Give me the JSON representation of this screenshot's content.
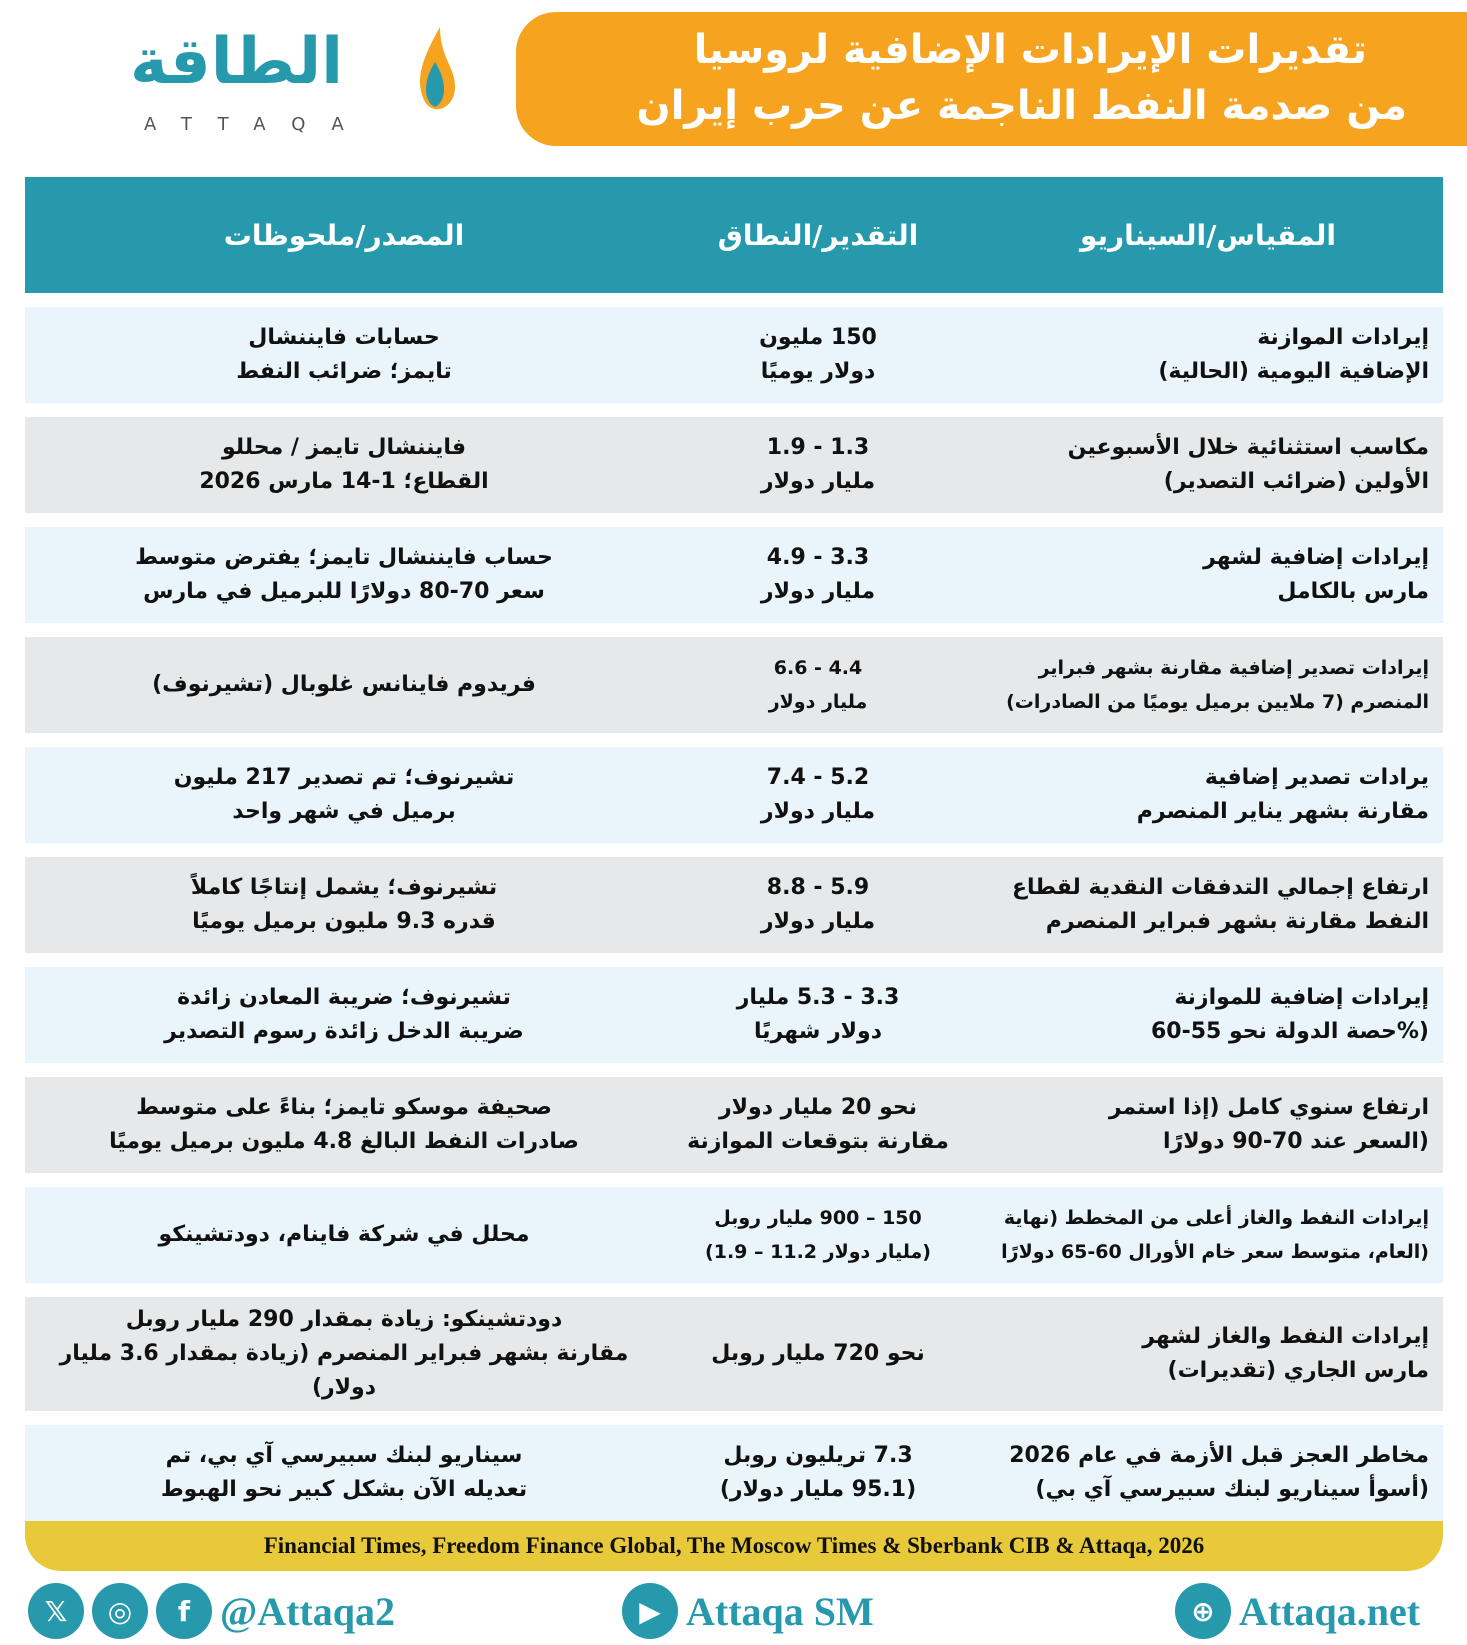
{
  "title": {
    "line1": "تقديرات الإيرادات الإضافية لروسيا",
    "line2": "من صدمة النفط الناجمة عن حرب إيران"
  },
  "logo": {
    "arabic": "الطاقة",
    "latin": "ATTAQA"
  },
  "colors": {
    "title_bg": "#f6a31f",
    "header_bg": "#2699ad",
    "row_odd": "#e9f4fb",
    "row_even": "#e6e8e9",
    "source_bg": "#e8c93a"
  },
  "table": {
    "headers": [
      "المقياس/السيناريو",
      "التقدير/النطاق",
      "المصدر/ملحوظات"
    ],
    "rows": [
      {
        "metric": [
          "إيرادات الموازنة",
          "الإضافية اليومية (الحالية)"
        ],
        "estimate": [
          "150 مليون",
          "دولار يوميًا"
        ],
        "source": [
          "حسابات فايننشال",
          "تايمز؛ ضرائب النفط"
        ]
      },
      {
        "metric": [
          "مكاسب استثنائية خلال الأسبوعين",
          "الأولين (ضرائب التصدير)"
        ],
        "estimate": [
          "1.3 - 1.9",
          "مليار دولار"
        ],
        "source": [
          "فايننشال تايمز / محللو",
          "القطاع؛ 1-14 مارس 2026"
        ]
      },
      {
        "metric": [
          "إيرادات إضافية لشهر",
          "مارس بالكامل"
        ],
        "estimate": [
          "3.3 - 4.9",
          "مليار دولار"
        ],
        "source": [
          "حساب فايننشال تايمز؛ يفترض متوسط",
          "سعر 70-80 دولارًا للبرميل في مارس"
        ]
      },
      {
        "metric": [
          "إيرادات تصدير إضافية مقارنة بشهر فبراير",
          "المنصرم (7 ملايين برميل يوميًا من الصادرات)"
        ],
        "estimate": [
          "4.4 - 6.6",
          "مليار دولار"
        ],
        "source": [
          "فريدوم فاينانس غلوبال (تشيرنوف)"
        ]
      },
      {
        "metric": [
          "يرادات تصدير إضافية",
          "مقارنة بشهر يناير المنصرم"
        ],
        "estimate": [
          "5.2 - 7.4",
          "مليار دولار"
        ],
        "source": [
          "تشيرنوف؛ تم تصدير 217 مليون",
          "برميل في شهر واحد"
        ]
      },
      {
        "metric": [
          "ارتفاع إجمالي التدفقات النقدية لقطاع",
          "النفط مقارنة بشهر فبراير المنصرم"
        ],
        "estimate": [
          "5.9 - 8.8",
          "مليار دولار"
        ],
        "source": [
          "تشيرنوف؛ يشمل إنتاجًا كاملاً",
          "قدره 9.3 مليون برميل يوميًا"
        ]
      },
      {
        "metric": [
          "إيرادات إضافية للموازنة",
          "(%حصة الدولة نحو 55-60"
        ],
        "estimate": [
          "3.3 - 5.3 مليار",
          "دولار شهريًا"
        ],
        "source": [
          "تشيرنوف؛ ضريبة المعادن زائدة",
          "ضريبة الدخل زائدة رسوم التصدير"
        ]
      },
      {
        "metric": [
          "ارتفاع سنوي كامل (إذا استمر",
          "(السعر عند 70-90 دولارًا"
        ],
        "estimate": [
          "نحو 20 مليار دولار",
          "مقارنة بتوقعات الموازنة"
        ],
        "source": [
          "صحيفة موسكو تايمز؛ بناءً على متوسط",
          "صادرات النفط البالغ 4.8 مليون برميل يوميًا"
        ]
      },
      {
        "metric": [
          "إيرادات النفط والغاز أعلى من المخطط (نهاية",
          "(العام، متوسط سعر خام الأورال 60-65 دولارًا"
        ],
        "estimate": [
          "150 – 900 مليار روبل",
          "(مليار دولار 11.2 – 1.9)"
        ],
        "source": [
          "محلل في شركة فاينام، دودتشينكو"
        ]
      },
      {
        "metric": [
          "إيرادات النفط والغاز لشهر",
          "مارس الجاري (تقديرات)"
        ],
        "estimate": [
          "نحو 720 مليار روبل"
        ],
        "source": [
          "دودتشينكو: زيادة بمقدار 290 مليار روبل",
          "مقارنة بشهر فبراير المنصرم (زيادة بمقدار 3.6 مليار دولار)"
        ]
      },
      {
        "metric": [
          "مخاطر العجز قبل الأزمة في عام 2026",
          "(أسوأ سيناريو لبنك سبيرسي آي بي)"
        ],
        "estimate": [
          "7.3 تريليون روبل",
          "(95.1 مليار دولار)"
        ],
        "source": [
          "سيناريو لبنك سبيرسي آي بي، تم",
          "تعديله الآن بشكل كبير نحو الهبوط"
        ]
      }
    ]
  },
  "source_line": "Financial Times, Freedom Finance Global, The Moscow Times &  Sberbank CIB & Attaqa, 2026",
  "footer": {
    "handle": "@Attaqa2",
    "youtube": "Attaqa SM",
    "website": "Attaqa.net",
    "icons": [
      "x-icon",
      "instagram-icon",
      "facebook-icon",
      "youtube-icon",
      "globe-icon"
    ]
  }
}
